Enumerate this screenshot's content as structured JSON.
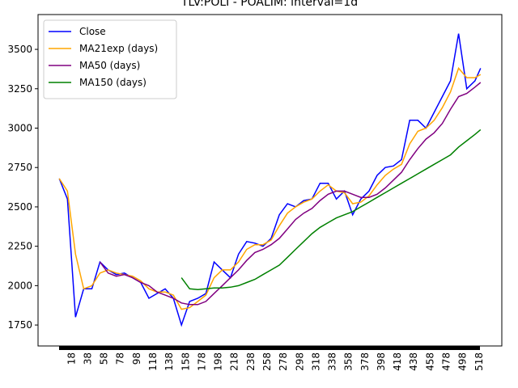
{
  "chart_data": {
    "type": "line",
    "title": "TLV:POLI - POALIM: interval=1d",
    "x": [
      3,
      13,
      23,
      33,
      43,
      53,
      63,
      73,
      83,
      93,
      103,
      113,
      123,
      133,
      143,
      153,
      163,
      173,
      183,
      193,
      203,
      213,
      223,
      233,
      243,
      253,
      263,
      273,
      283,
      293,
      303,
      313,
      323,
      333,
      343,
      353,
      363,
      373,
      383,
      393,
      403,
      413,
      423,
      433,
      443,
      453,
      463,
      473,
      483,
      493,
      503,
      513,
      520
    ],
    "series": [
      {
        "name": "Close",
        "color": "#0000ff",
        "values": [
          2680,
          2550,
          1800,
          1980,
          1980,
          2150,
          2100,
          2070,
          2080,
          2050,
          2020,
          1920,
          1950,
          1980,
          1920,
          1750,
          1900,
          1920,
          1950,
          2150,
          2100,
          2050,
          2200,
          2280,
          2270,
          2250,
          2300,
          2450,
          2520,
          2500,
          2540,
          2550,
          2650,
          2650,
          2550,
          2600,
          2450,
          2550,
          2600,
          2700,
          2750,
          2760,
          2800,
          3050,
          3050,
          3000,
          3100,
          3200,
          3300,
          3600,
          3250,
          3300,
          3380
        ]
      },
      {
        "name": "MA21exp (days)",
        "color": "#ffa500",
        "values": [
          2680,
          2600,
          2200,
          1980,
          2000,
          2080,
          2100,
          2080,
          2070,
          2060,
          2030,
          1980,
          1960,
          1960,
          1940,
          1850,
          1860,
          1900,
          1940,
          2050,
          2100,
          2100,
          2150,
          2230,
          2260,
          2260,
          2290,
          2380,
          2460,
          2500,
          2530,
          2550,
          2600,
          2640,
          2600,
          2590,
          2520,
          2530,
          2570,
          2640,
          2700,
          2740,
          2770,
          2900,
          2980,
          3000,
          3050,
          3130,
          3230,
          3380,
          3320,
          3320,
          3340
        ]
      },
      {
        "name": "MA50 (days)",
        "color": "#800080",
        "values": [
          null,
          null,
          null,
          null,
          null,
          2150,
          2080,
          2060,
          2070,
          2050,
          2020,
          2000,
          1960,
          1940,
          1920,
          1890,
          1880,
          1880,
          1900,
          1950,
          2000,
          2050,
          2100,
          2160,
          2210,
          2230,
          2260,
          2300,
          2360,
          2420,
          2460,
          2490,
          2540,
          2580,
          2600,
          2600,
          2580,
          2560,
          2560,
          2580,
          2620,
          2670,
          2720,
          2800,
          2870,
          2930,
          2970,
          3030,
          3120,
          3200,
          3220,
          3260,
          3290
        ]
      },
      {
        "name": "MA150 (days)",
        "color": "#008000",
        "values": [
          null,
          null,
          null,
          null,
          null,
          null,
          null,
          null,
          null,
          null,
          null,
          null,
          null,
          null,
          null,
          2050,
          1980,
          1975,
          1980,
          1985,
          1985,
          1990,
          2000,
          2020,
          2040,
          2070,
          2100,
          2130,
          2180,
          2230,
          2280,
          2330,
          2370,
          2400,
          2430,
          2450,
          2470,
          2500,
          2530,
          2560,
          2590,
          2620,
          2650,
          2680,
          2710,
          2740,
          2770,
          2800,
          2830,
          2880,
          2920,
          2960,
          2990
        ]
      }
    ],
    "xlim": [
      -23,
      546
    ],
    "ylim": [
      1617,
      3721
    ],
    "xticks": [
      18,
      38,
      58,
      78,
      98,
      118,
      138,
      158,
      178,
      198,
      218,
      238,
      258,
      278,
      298,
      318,
      338,
      358,
      378,
      398,
      418,
      438,
      458,
      478,
      498,
      518
    ],
    "yticks": [
      1750,
      2000,
      2250,
      2500,
      2750,
      3000,
      3250,
      3500
    ],
    "legend": "upper left",
    "grid": false
  }
}
